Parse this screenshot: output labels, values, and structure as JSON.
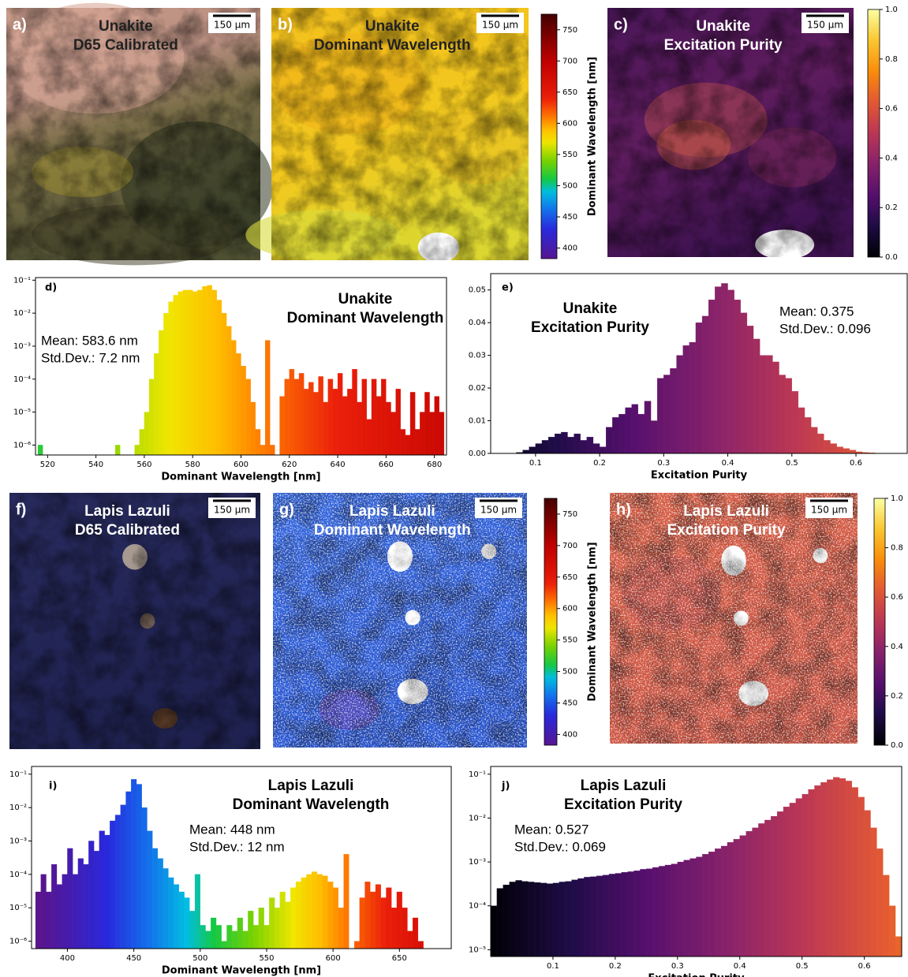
{
  "images": [
    {
      "label": "a)",
      "title": "Unakite",
      "subtitle": "D65 Calibrated",
      "scale_bar": "150 µm"
    },
    {
      "label": "b)",
      "title": "Unakite",
      "subtitle": "Dominant Wavelength",
      "scale_bar": "150 µm"
    },
    {
      "label": "c)",
      "title": "Unakite",
      "subtitle": "Excitation Purity",
      "scale_bar": "150 µm"
    },
    {
      "label": "f)",
      "title": "Lapis Lazuli",
      "subtitle": "D65 Calibrated",
      "scale_bar": "150 µm"
    },
    {
      "label": "g)",
      "title": "Lapis Lazuli",
      "subtitle": "Dominant Wavelength",
      "scale_bar": "150 µm"
    },
    {
      "label": "h)",
      "title": "Lapis Lazuli",
      "subtitle": "Excitation Purity",
      "scale_bar": "150 µm"
    }
  ],
  "chart_data": [
    {
      "type": "colorbar",
      "colormap": "spectrum",
      "ylim": [
        383,
        775
      ],
      "yticks": [
        400,
        450,
        500,
        550,
        600,
        650,
        700,
        750
      ],
      "ylabel": "Dominant Wavelength [nm]"
    },
    {
      "type": "colorbar",
      "colormap": "inferno",
      "ylim": [
        0,
        1
      ],
      "yticks": [
        {
          "value": 0,
          "label": "0.0"
        },
        0.2,
        0.4,
        0.6,
        0.8,
        {
          "value": 1,
          "label": "1.0"
        }
      ]
    },
    {
      "type": "histogram",
      "panel_label": "d)",
      "title": "Unakite",
      "subtitle": "Dominant Wavelength",
      "annotations": [
        "Mean: 583.6 nm",
        "Std.Dev.: 7.2 nm"
      ],
      "xlabel": "Dominant Wavelength [nm]",
      "colormap": "spectrum",
      "log_y": true,
      "xlim": [
        515,
        685
      ],
      "xticks": [
        520,
        540,
        560,
        580,
        600,
        620,
        640,
        660,
        680
      ],
      "ylim": [
        5e-07,
        0.12
      ],
      "yticks": [
        {
          "value": 1e-06,
          "label": "10⁻⁶"
        },
        {
          "value": 1e-05,
          "label": "10⁻⁵"
        },
        {
          "value": 0.0001,
          "label": "10⁻⁴"
        },
        {
          "value": 0.001,
          "label": "10⁻³"
        },
        {
          "value": 0.01,
          "label": "10⁻²"
        },
        {
          "value": 0.1,
          "label": "10⁻¹"
        }
      ],
      "bins": [
        516,
        518,
        520,
        522,
        524,
        526,
        528,
        530,
        532,
        534,
        536,
        538,
        540,
        542,
        544,
        546,
        548,
        550,
        552,
        554,
        556,
        558,
        560,
        562,
        564,
        566,
        568,
        570,
        572,
        574,
        576,
        578,
        580,
        582,
        584,
        586,
        588,
        590,
        592,
        594,
        596,
        598,
        600,
        602,
        604,
        606,
        608,
        610,
        612,
        614,
        616,
        618,
        620,
        622,
        624,
        626,
        628,
        630,
        632,
        634,
        636,
        638,
        640,
        642,
        644,
        646,
        648,
        650,
        652,
        654,
        656,
        658,
        660,
        662,
        664,
        666,
        668,
        670,
        672,
        674,
        676,
        678,
        680,
        682,
        684
      ],
      "values": [
        1e-06,
        0,
        0,
        0,
        0,
        0,
        0,
        0,
        0,
        0,
        0,
        0,
        0,
        0,
        0,
        0,
        1e-06,
        0,
        0,
        0,
        1e-06,
        3e-06,
        1e-05,
        0.0001,
        0.0006,
        0.003,
        0.01,
        0.022,
        0.035,
        0.045,
        0.05,
        0.05,
        0.045,
        0.05,
        0.065,
        0.07,
        0.05,
        0.025,
        0.01,
        0.004,
        0.0015,
        0.0006,
        0.00025,
        0.0001,
        2e-05,
        3e-06,
        1e-06,
        0.0015,
        1e-06,
        0,
        3e-05,
        0.0001,
        0.0002,
        0.0001,
        0.00015,
        5e-05,
        8e-05,
        4e-05,
        0.00012,
        2e-05,
        0.0001,
        5e-05,
        0.00015,
        3e-05,
        5e-05,
        0.0002,
        2e-05,
        0.0001,
        6e-06,
        0.0001,
        3e-05,
        0.0001,
        2e-05,
        1e-05,
        5e-05,
        3e-06,
        2e-06,
        4e-05,
        3e-06,
        1e-05,
        4e-05,
        1e-05,
        3e-05,
        1e-05
      ]
    },
    {
      "type": "histogram",
      "panel_label": "e)",
      "title": "Unakite",
      "subtitle": "Excitation Purity",
      "annotations": [
        "Mean: 0.375",
        "Std.Dev.: 0.096"
      ],
      "xlabel": "Excitation Purity",
      "colormap": "inferno",
      "log_y": false,
      "xlim": [
        0.03,
        0.68
      ],
      "xticks": [
        0.1,
        0.2,
        0.3,
        0.4,
        0.5,
        0.6
      ],
      "ylim": [
        0,
        0.055
      ],
      "yticks": [
        {
          "value": 0,
          "label": "0.00"
        },
        0.01,
        0.02,
        0.03,
        0.04,
        0.05
      ],
      "bins": [
        0.07,
        0.08,
        0.09,
        0.1,
        0.11,
        0.12,
        0.13,
        0.14,
        0.15,
        0.16,
        0.17,
        0.18,
        0.19,
        0.2,
        0.21,
        0.22,
        0.23,
        0.24,
        0.25,
        0.26,
        0.27,
        0.28,
        0.29,
        0.3,
        0.31,
        0.32,
        0.33,
        0.34,
        0.35,
        0.36,
        0.37,
        0.38,
        0.39,
        0.4,
        0.41,
        0.42,
        0.43,
        0.44,
        0.45,
        0.46,
        0.47,
        0.48,
        0.49,
        0.5,
        0.51,
        0.52,
        0.53,
        0.54,
        0.55,
        0.56,
        0.57,
        0.58,
        0.59,
        0.6,
        0.61,
        0.62,
        0.63
      ],
      "values": [
        0.0003,
        0.001,
        0.002,
        0.003,
        0.004,
        0.005,
        0.006,
        0.0065,
        0.005,
        0.006,
        0.004,
        0.005,
        0.003,
        0.002,
        0.008,
        0.011,
        0.012,
        0.014,
        0.015,
        0.012,
        0.016,
        0.01,
        0.023,
        0.024,
        0.026,
        0.03,
        0.033,
        0.034,
        0.04,
        0.042,
        0.047,
        0.051,
        0.052,
        0.05,
        0.047,
        0.043,
        0.039,
        0.035,
        0.03,
        0.03,
        0.028,
        0.024,
        0.023,
        0.019,
        0.014,
        0.011,
        0.008,
        0.006,
        0.004,
        0.003,
        0.002,
        0.0015,
        0.001,
        0.0005,
        0.0003,
        0.0002
      ]
    },
    {
      "type": "colorbar",
      "colormap": "spectrum",
      "ylim": [
        383,
        775
      ],
      "yticks": [
        400,
        450,
        500,
        550,
        600,
        650,
        700,
        750
      ],
      "ylabel": "Dominant Wavelength [nm]"
    },
    {
      "type": "colorbar",
      "colormap": "inferno",
      "ylim": [
        0,
        1
      ],
      "yticks": [
        {
          "value": 0,
          "label": "0.0"
        },
        0.2,
        0.4,
        0.6,
        0.8,
        {
          "value": 1,
          "label": "1.0"
        }
      ]
    },
    {
      "type": "histogram",
      "panel_label": "i)",
      "title": "Lapis Lazuli",
      "subtitle": "Dominant Wavelength",
      "annotations": [
        "Mean: 448 nm",
        "Std.Dev.: 12 nm"
      ],
      "xlabel": "Dominant Wavelength [nm]",
      "colormap": "spectrum",
      "log_y": true,
      "xlim": [
        373,
        689
      ],
      "xticks": [
        400,
        450,
        500,
        550,
        600,
        650
      ],
      "ylim": [
        6e-07,
        0.17
      ],
      "yticks": [
        {
          "value": 1e-06,
          "label": "10⁻⁶"
        },
        {
          "value": 1e-05,
          "label": "10⁻⁵"
        },
        {
          "value": 0.0001,
          "label": "10⁻⁴"
        },
        {
          "value": 0.001,
          "label": "10⁻³"
        },
        {
          "value": 0.01,
          "label": "10⁻²"
        },
        {
          "value": 0.1,
          "label": "10⁻¹"
        }
      ],
      "bins": [
        376,
        380,
        384,
        388,
        392,
        396,
        400,
        404,
        408,
        412,
        416,
        420,
        424,
        428,
        432,
        436,
        440,
        444,
        448,
        452,
        456,
        460,
        464,
        468,
        472,
        476,
        480,
        484,
        488,
        492,
        496,
        500,
        504,
        508,
        512,
        516,
        520,
        524,
        528,
        532,
        536,
        540,
        544,
        548,
        552,
        556,
        560,
        564,
        568,
        572,
        576,
        580,
        584,
        588,
        592,
        596,
        600,
        604,
        608,
        612,
        616,
        620,
        624,
        628,
        632,
        636,
        640,
        644,
        648,
        652,
        656,
        660,
        664,
        668,
        672,
        676,
        680,
        684,
        688
      ],
      "values": [
        3e-05,
        0.0001,
        3e-05,
        0.0002,
        5e-05,
        0.0001,
        0.0006,
        0.0001,
        0.0003,
        0.0002,
        0.001,
        0.0005,
        0.002,
        0.0015,
        0.004,
        0.006,
        0.012,
        0.03,
        0.07,
        0.05,
        0.01,
        0.002,
        0.0006,
        0.0003,
        0.00015,
        8e-05,
        5e-05,
        3e-05,
        2e-05,
        8e-06,
        0.0001,
        3e-06,
        2e-06,
        5e-06,
        3e-06,
        1e-06,
        3e-06,
        2e-06,
        5e-06,
        2e-06,
        8e-06,
        3e-06,
        1e-05,
        3e-06,
        2e-05,
        1e-05,
        3e-05,
        1.5e-05,
        4e-05,
        6e-05,
        8e-05,
        0.0001,
        0.00012,
        0.0001,
        9e-05,
        6e-05,
        4e-05,
        1e-05,
        0.0004,
        0,
        1e-06,
        2e-05,
        6e-05,
        3e-05,
        5e-05,
        2e-05,
        4e-05,
        1e-05,
        3e-05,
        1e-05,
        2e-06,
        5e-06,
        1e-06,
        0,
        0,
        0,
        0,
        0
      ]
    },
    {
      "type": "histogram",
      "panel_label": "j)",
      "title": "Lapis Lazuli",
      "subtitle": "Excitation Purity",
      "annotations": [
        "Mean: 0.527",
        "Std.Dev.: 0.069"
      ],
      "xlabel": "Excitation Purity",
      "colormap": "inferno",
      "log_y": true,
      "xlim": [
        0,
        0.66
      ],
      "xticks": [
        0.1,
        0.2,
        0.3,
        0.4,
        0.5,
        0.6
      ],
      "ylim": [
        7e-06,
        0.15
      ],
      "yticks": [
        {
          "value": 1e-05,
          "label": "10⁻⁵"
        },
        {
          "value": 0.0001,
          "label": "10⁻⁴"
        },
        {
          "value": 0.001,
          "label": "10⁻³"
        },
        {
          "value": 0.01,
          "label": "10⁻²"
        },
        {
          "value": 0.1,
          "label": "10⁻¹"
        }
      ],
      "bins": [
        0,
        0.01,
        0.02,
        0.03,
        0.04,
        0.05,
        0.06,
        0.07,
        0.08,
        0.09,
        0.1,
        0.11,
        0.12,
        0.13,
        0.14,
        0.15,
        0.16,
        0.17,
        0.18,
        0.19,
        0.2,
        0.21,
        0.22,
        0.23,
        0.24,
        0.25,
        0.26,
        0.27,
        0.28,
        0.29,
        0.3,
        0.31,
        0.32,
        0.33,
        0.34,
        0.35,
        0.36,
        0.37,
        0.38,
        0.39,
        0.4,
        0.41,
        0.42,
        0.43,
        0.44,
        0.45,
        0.46,
        0.47,
        0.48,
        0.49,
        0.5,
        0.51,
        0.52,
        0.53,
        0.54,
        0.55,
        0.56,
        0.57,
        0.58,
        0.59,
        0.6,
        0.61,
        0.62,
        0.63,
        0.64,
        0.65,
        0.66
      ],
      "values": [
        0.0001,
        0.00025,
        0.0003,
        0.00035,
        0.00038,
        0.00036,
        0.00035,
        0.00034,
        0.00033,
        0.00032,
        0.00033,
        0.00035,
        0.00036,
        0.00039,
        0.00042,
        0.00045,
        0.00046,
        0.00048,
        0.0005,
        0.00053,
        0.00055,
        0.00058,
        0.0006,
        0.00063,
        0.00068,
        0.0007,
        0.00075,
        0.0008,
        0.00085,
        0.0009,
        0.001,
        0.0011,
        0.0012,
        0.0013,
        0.0015,
        0.0017,
        0.002,
        0.0023,
        0.0028,
        0.0033,
        0.004,
        0.005,
        0.006,
        0.0075,
        0.009,
        0.011,
        0.014,
        0.018,
        0.022,
        0.028,
        0.035,
        0.045,
        0.055,
        0.065,
        0.075,
        0.085,
        0.08,
        0.07,
        0.05,
        0.03,
        0.015,
        0.006,
        0.002,
        0.0005,
        0.0001,
        2e-05
      ]
    }
  ]
}
